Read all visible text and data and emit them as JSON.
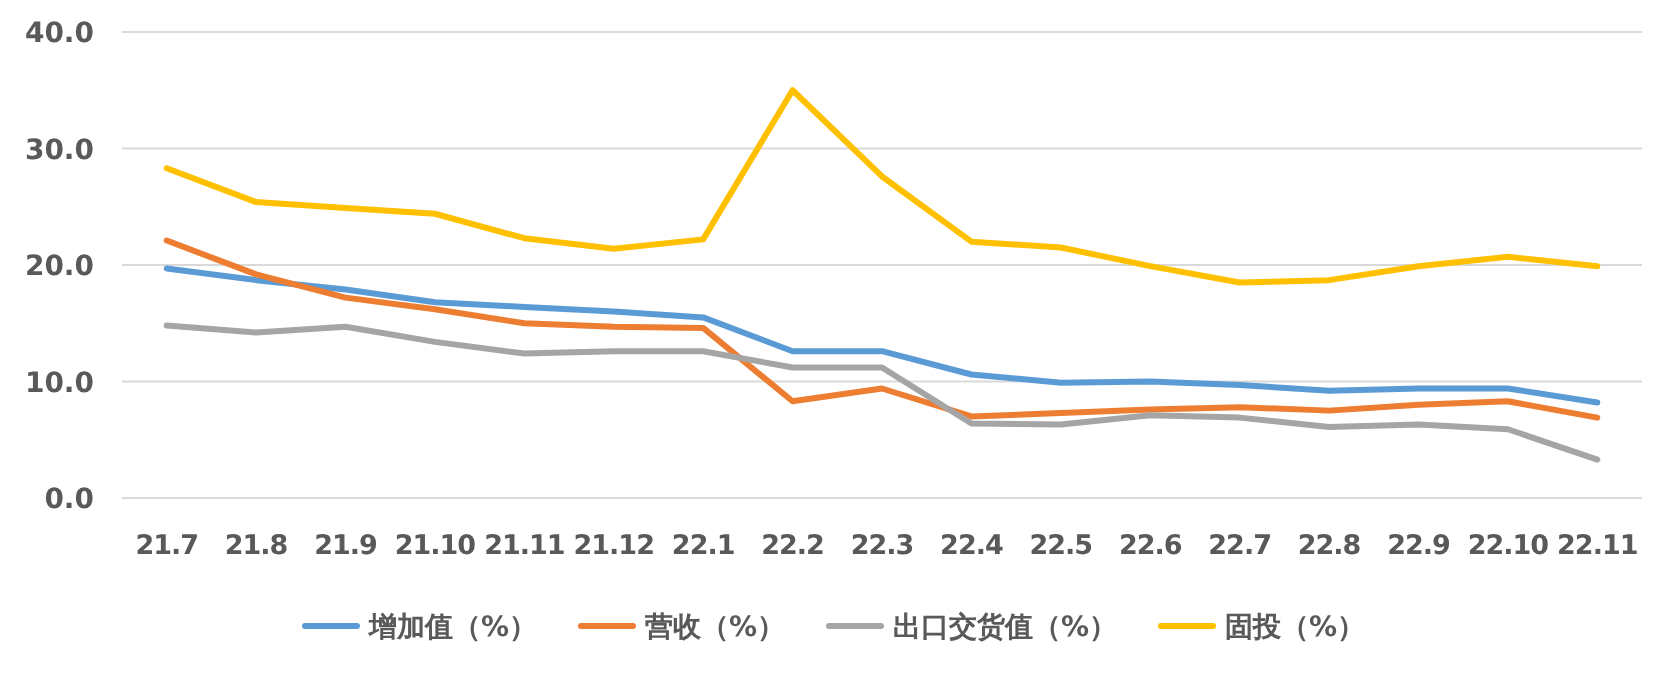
{
  "chart_data": {
    "type": "line",
    "categories": [
      "21.7",
      "21.8",
      "21.9",
      "21.10",
      "21.11",
      "21.12",
      "22.1",
      "22.2",
      "22.3",
      "22.4",
      "22.5",
      "22.6",
      "22.7",
      "22.8",
      "22.9",
      "22.10",
      "22.11"
    ],
    "series": [
      {
        "name": "增加值（%）",
        "color": "#5b9bd5",
        "values": [
          19.7,
          18.7,
          17.9,
          16.8,
          16.4,
          16.0,
          15.5,
          12.6,
          12.6,
          10.6,
          9.9,
          10.0,
          9.7,
          9.2,
          9.4,
          9.4,
          8.2
        ]
      },
      {
        "name": "营收（%）",
        "color": "#ed7d31",
        "values": [
          22.1,
          19.2,
          17.2,
          16.2,
          15.0,
          14.7,
          14.6,
          8.3,
          9.4,
          7.0,
          7.3,
          7.6,
          7.8,
          7.5,
          8.0,
          8.3,
          6.9
        ]
      },
      {
        "name": "出口交货值（%）",
        "color": "#a5a5a5",
        "values": [
          14.8,
          14.2,
          14.7,
          13.4,
          12.4,
          12.6,
          12.6,
          11.2,
          11.2,
          6.4,
          6.3,
          7.1,
          6.9,
          6.1,
          6.3,
          5.9,
          3.3
        ]
      },
      {
        "name": "固投（%）",
        "color": "#ffc000",
        "values": [
          28.3,
          25.4,
          24.9,
          24.4,
          22.3,
          21.4,
          22.2,
          35.0,
          27.6,
          22.0,
          21.5,
          19.9,
          18.5,
          18.7,
          19.9,
          20.7,
          19.9
        ]
      }
    ],
    "ylim": [
      0,
      40
    ],
    "yticks": [
      {
        "value": 0,
        "label": "0.0"
      },
      {
        "value": 10,
        "label": "10.0"
      },
      {
        "value": 20,
        "label": "20.0"
      },
      {
        "value": 30,
        "label": "30.0"
      },
      {
        "value": 40,
        "label": "40.0"
      }
    ],
    "grid": "y",
    "legend": "bottom",
    "marker": "none",
    "line_style": "solid"
  }
}
